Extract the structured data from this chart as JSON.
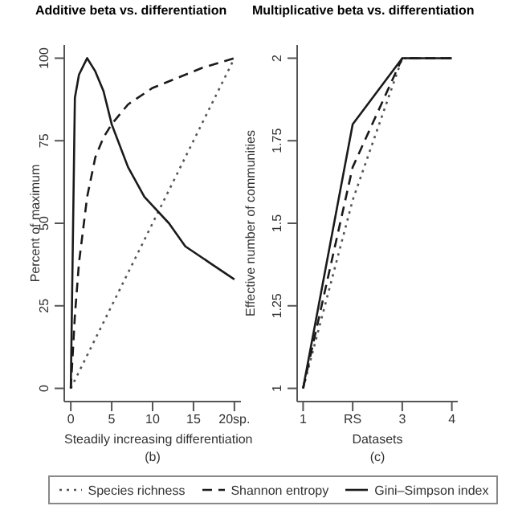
{
  "chart_data": [
    {
      "type": "line",
      "title": "Additive beta vs. differentiation",
      "xlabel": "Steadily increasing differentiation",
      "ylabel": "Percent of maximum",
      "xlim": [
        -0.8,
        20.8
      ],
      "ylim": [
        -4,
        104
      ],
      "xticks": [
        0,
        5,
        10,
        15,
        {
          "value": 20,
          "label": "20sp."
        }
      ],
      "yticks": [
        0,
        25,
        50,
        75,
        100
      ],
      "grid": false,
      "marker": "none",
      "legend": "bottom",
      "annotations": [
        "(b)"
      ],
      "series": [
        {
          "name": "Species richness",
          "color": "#555555",
          "line_style": "dotted",
          "x": [
            0,
            20
          ],
          "values": [
            0,
            100
          ]
        },
        {
          "name": "Shannon entropy",
          "color": "#1a1a1a",
          "line_style": "dashed",
          "x": [
            0,
            0.5,
            1,
            2,
            3,
            4,
            5,
            7,
            10,
            13,
            16,
            20
          ],
          "values": [
            0,
            22,
            38,
            58,
            70,
            76,
            80,
            86,
            91,
            94,
            97,
            100
          ]
        },
        {
          "name": "Gini–Simpson index",
          "color": "#1a1a1a",
          "line_style": "solid",
          "x": [
            0,
            0.5,
            1,
            2,
            3,
            4,
            5,
            7,
            9,
            12,
            14,
            17,
            20
          ],
          "values": [
            0,
            88,
            95,
            100,
            96,
            90,
            80,
            67,
            58,
            50,
            43,
            38,
            33
          ]
        }
      ]
    },
    {
      "type": "line",
      "title": "Multiplicative beta vs. differentiation",
      "xlabel": "Datasets",
      "ylabel": "Effective number of communities",
      "categories": [
        "1",
        "RS",
        "3",
        "4"
      ],
      "ylim": [
        0.96,
        2.04
      ],
      "yticks": [
        1,
        1.25,
        1.5,
        1.75,
        2
      ],
      "grid": false,
      "marker": "none",
      "annotations": [
        "(c)"
      ],
      "series": [
        {
          "color": "#555555",
          "line_style": "dotted",
          "values": [
            1,
            1.57,
            2,
            2
          ]
        },
        {
          "color": "#1a1a1a",
          "line_style": "dashed",
          "values": [
            1,
            1.67,
            2,
            2
          ]
        },
        {
          "color": "#1a1a1a",
          "line_style": "solid",
          "values": [
            1,
            1.8,
            2,
            2
          ]
        }
      ]
    }
  ]
}
